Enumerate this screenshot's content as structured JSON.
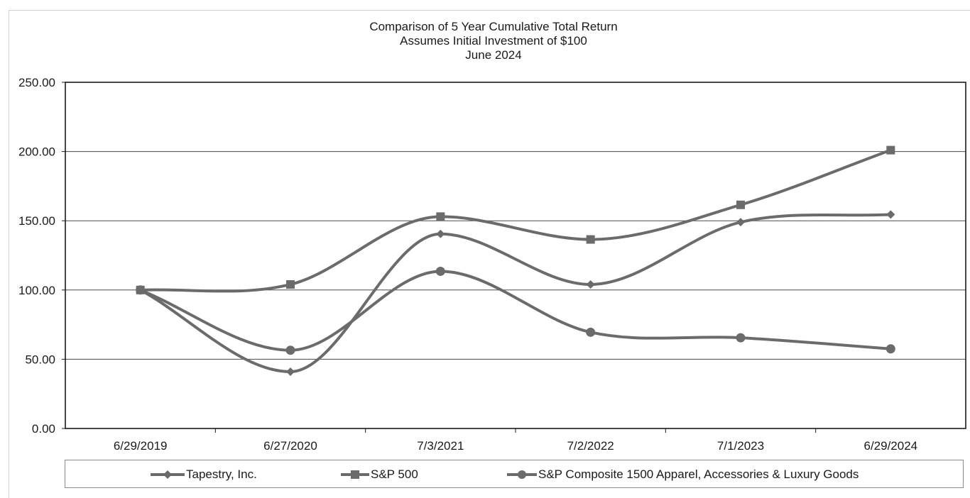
{
  "chart_data": {
    "type": "line",
    "title": "Comparison of 5 Year Cumulative Total Return",
    "subtitle_lines": [
      "Assumes Initial Investment of $100",
      "June 2024"
    ],
    "categories": [
      "6/29/2019",
      "6/27/2020",
      "7/3/2021",
      "7/2/2022",
      "7/1/2023",
      "6/29/2024"
    ],
    "ylim": [
      0,
      250
    ],
    "yticks": [
      "0.00",
      "50.00",
      "100.00",
      "150.00",
      "200.00",
      "250.00"
    ],
    "ytick_values": [
      0,
      50,
      100,
      150,
      200,
      250
    ],
    "grid": true,
    "legend_position": "bottom",
    "series": [
      {
        "name": "Tapestry, Inc.",
        "marker": "diamond",
        "color": "#6b6b6b",
        "values": [
          100,
          41,
          140.5,
          104,
          149,
          154.5
        ]
      },
      {
        "name": "S&P 500",
        "marker": "square",
        "color": "#6b6b6b",
        "values": [
          100,
          104,
          153,
          136.5,
          161.5,
          201
        ]
      },
      {
        "name": "S&P Composite 1500 Apparel, Accessories & Luxury Goods",
        "marker": "circle",
        "color": "#6b6b6b",
        "values": [
          100,
          56.5,
          113.5,
          69.5,
          65.5,
          57.5
        ]
      }
    ]
  }
}
